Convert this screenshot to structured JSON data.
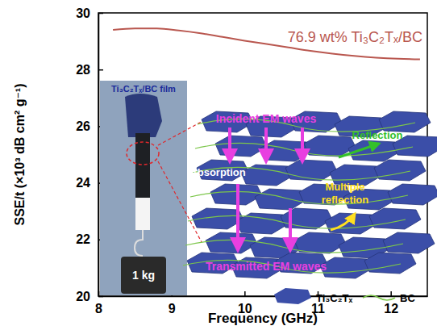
{
  "chart_data": {
    "type": "line",
    "x_label": "Frequency (GHz)",
    "y_label": "SSE/t (×10³ dB cm² g⁻¹)",
    "xlim": [
      8,
      12.5
    ],
    "xticks": [
      8,
      9,
      10,
      11,
      12
    ],
    "ylim": [
      20,
      30
    ],
    "yticks": [
      20,
      22,
      24,
      26,
      28,
      30
    ],
    "series": [
      {
        "name": "76.9 wt% Ti₃C₂Tₓ/BC",
        "color": "#b9574f",
        "x": [
          8.2,
          8.5,
          8.8,
          9.1,
          9.4,
          9.7,
          10.0,
          10.3,
          10.6,
          10.9,
          11.2,
          11.5,
          11.8,
          12.1,
          12.4
        ],
        "values": [
          29.4,
          29.45,
          29.45,
          29.38,
          29.28,
          29.15,
          29.02,
          28.9,
          28.78,
          28.66,
          28.56,
          28.48,
          28.42,
          28.38,
          28.36
        ]
      }
    ],
    "annotations": [
      "Ti₃C₂Tₓ/BC film",
      "1 kg",
      "Incident EM waves",
      "Reflection",
      "Absorption",
      "Multiple reflection",
      "Transmitted EM waves"
    ],
    "schematic_legend": [
      "Ti₃C₂Tₓ",
      "BC"
    ]
  }
}
